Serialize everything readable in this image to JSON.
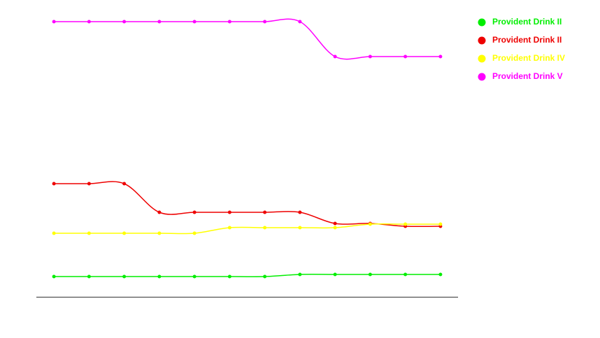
{
  "chart_data": {
    "type": "line",
    "categories": [
      null,
      null,
      null,
      null,
      null,
      null,
      null,
      null,
      null,
      null,
      null,
      null
    ],
    "series": [
      {
        "name": "Provident Drink II",
        "color": "#00ee00",
        "values": [
          29,
          29,
          29,
          29,
          29,
          29,
          29,
          32,
          32,
          32,
          32,
          32
        ]
      },
      {
        "name": "Provident Drink II",
        "color": "#ee0000",
        "values": [
          162,
          162,
          162,
          121,
          121,
          121,
          121,
          121,
          105,
          105,
          101,
          101
        ]
      },
      {
        "name": "Provident Drink IV",
        "color": "#ffff00",
        "values": [
          91,
          91,
          91,
          91,
          91,
          99,
          99,
          99,
          99,
          104,
          104,
          104
        ]
      },
      {
        "name": "Provident Drink V",
        "color": "#ff00ff",
        "values": [
          394,
          394,
          394,
          394,
          394,
          394,
          394,
          394,
          344,
          344,
          344,
          344
        ]
      }
    ],
    "ylim": [
      0,
      400
    ]
  }
}
